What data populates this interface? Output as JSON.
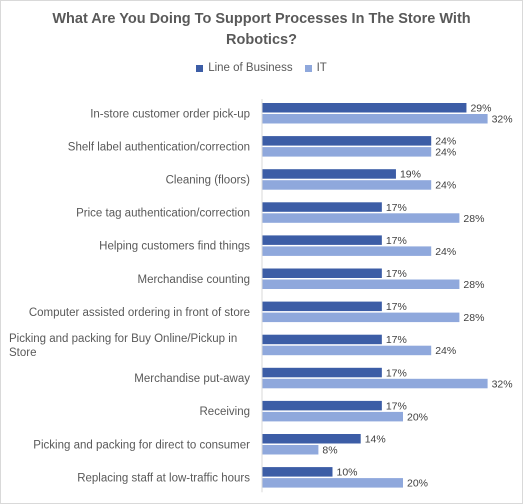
{
  "chart_data": {
    "type": "bar",
    "orientation": "horizontal",
    "title": "What Are You Doing To Support Processes In The Store With Robotics?",
    "categories": [
      "In-store customer order pick-up",
      "Shelf label authentication/correction",
      "Cleaning (floors)",
      "Price tag authentication/correction",
      "Helping customers find things",
      "Merchandise counting",
      "Computer assisted ordering in front of store",
      "Picking and packing for Buy Online/Pickup in Store",
      "Merchandise put-away",
      "Receiving",
      "Picking and packing for direct to consumer",
      "Replacing staff at low-traffic hours"
    ],
    "series": [
      {
        "name": "Line of Business",
        "color": "#3c5da6",
        "values": [
          29,
          24,
          19,
          17,
          17,
          17,
          17,
          17,
          17,
          17,
          14,
          10
        ]
      },
      {
        "name": "IT",
        "color": "#8fa8dc",
        "values": [
          32,
          24,
          24,
          28,
          24,
          28,
          28,
          24,
          32,
          20,
          8,
          20
        ]
      }
    ],
    "value_suffix": "%",
    "xlim": [
      0,
      35
    ],
    "legend_position": "top",
    "grid": false
  }
}
